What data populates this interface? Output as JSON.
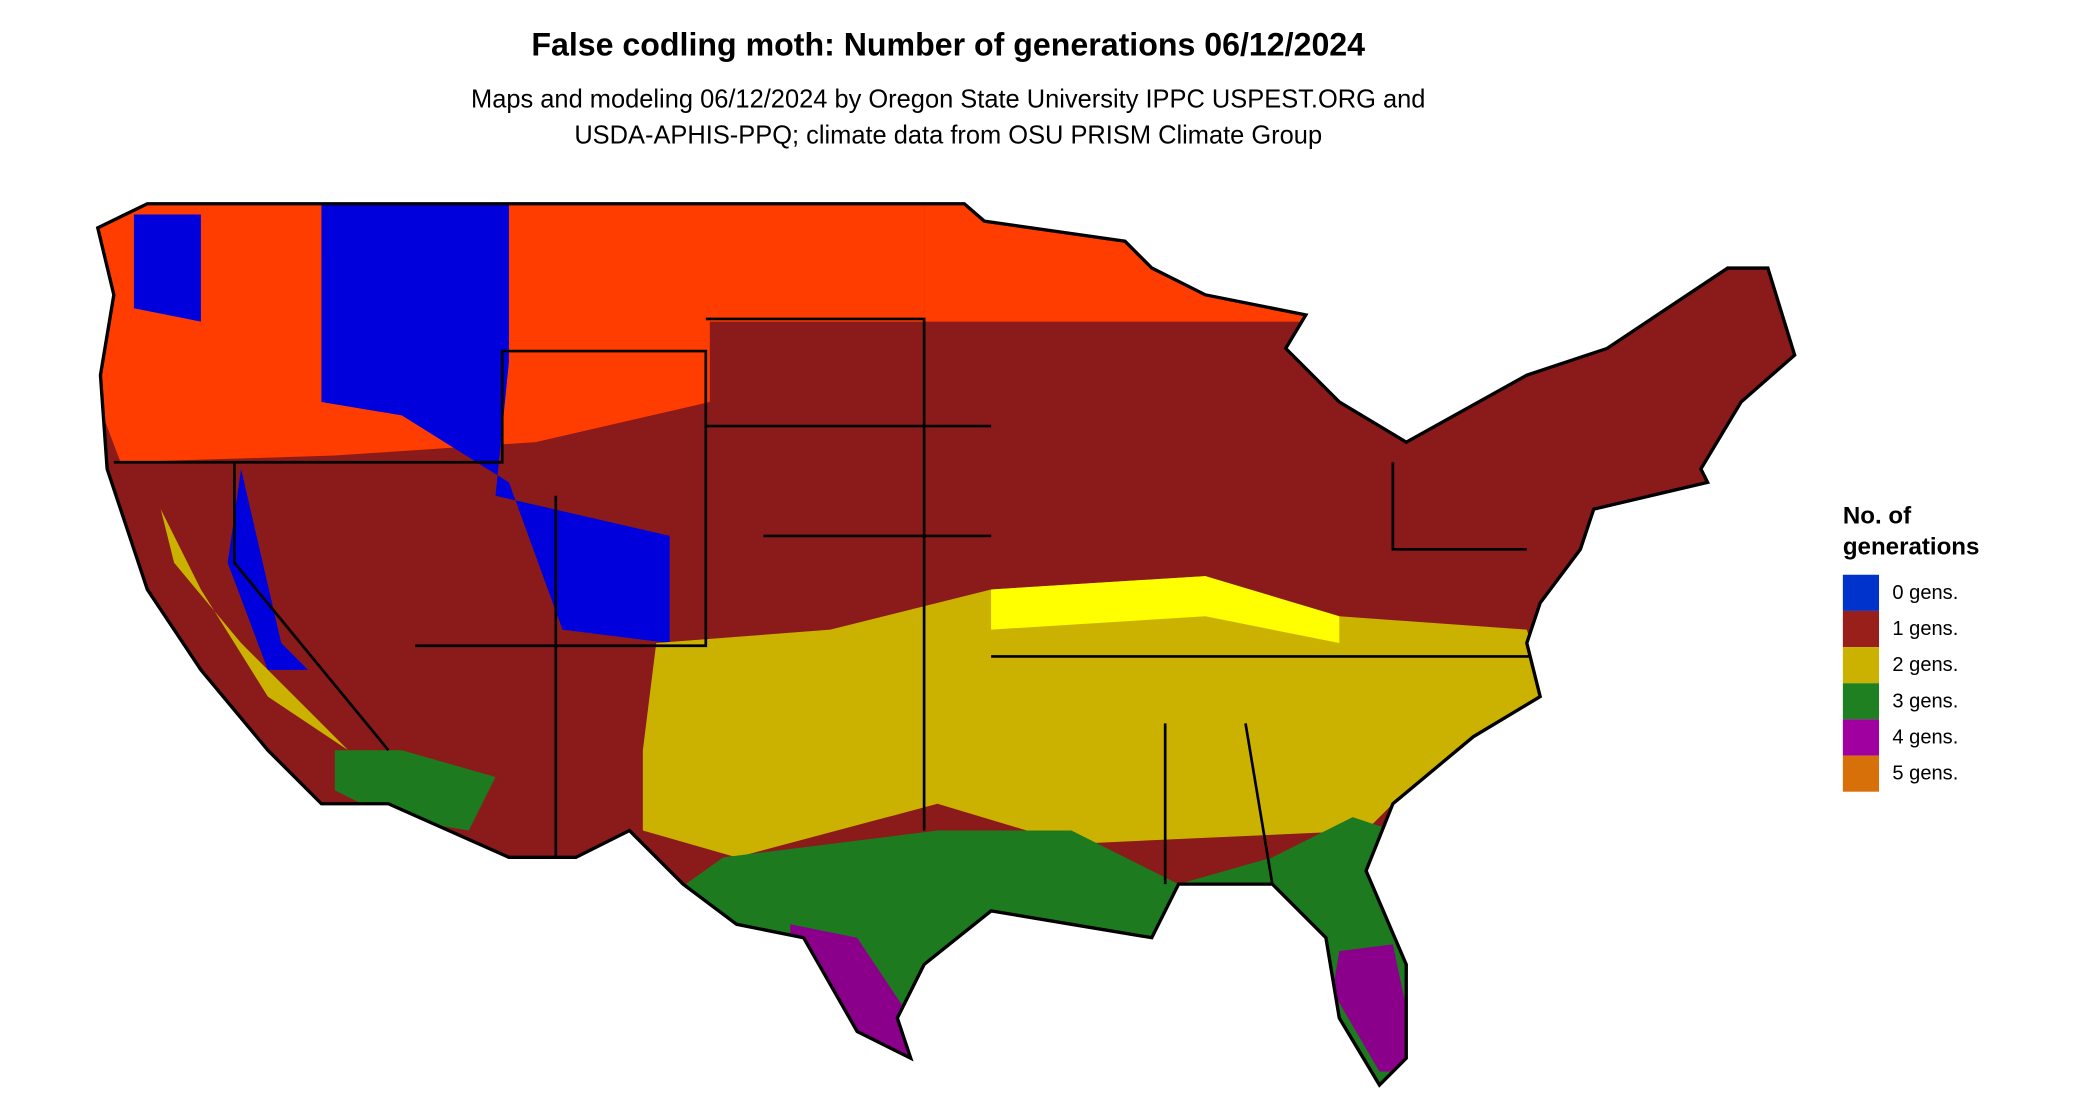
{
  "title": "False codling moth: Number of generations 06/12/2024",
  "subtitle": [
    "Maps and modeling 06/12/2024 by Oregon State University IPPC USPEST.ORG and",
    "USDA-APHIS-PPQ; climate data from OSU PRISM Climate Group"
  ],
  "legend": {
    "title": [
      "No. of",
      "generations"
    ],
    "items": [
      {
        "label": "0 gens.",
        "color": "#0033cc"
      },
      {
        "label": "1 gens.",
        "color": "#99201a"
      },
      {
        "label": "2 gens.",
        "color": "#ccb200"
      },
      {
        "label": "3 gens.",
        "color": "#1e8020"
      },
      {
        "label": "4 gens.",
        "color": "#a000a0"
      },
      {
        "label": "5 gens.",
        "color": "#d8700a"
      }
    ]
  }
}
